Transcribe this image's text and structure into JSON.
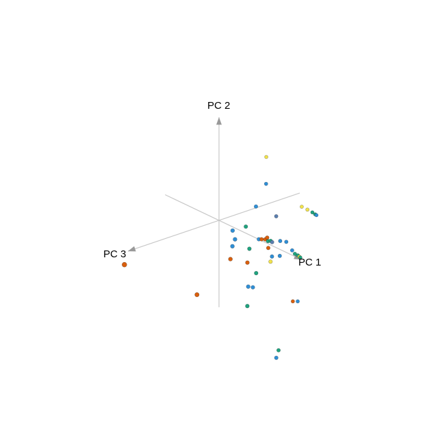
{
  "chart_data": {
    "type": "scatter",
    "title": "",
    "axes": [
      {
        "name": "PC 1"
      },
      {
        "name": "PC 2"
      },
      {
        "name": "PC 3"
      }
    ],
    "grid": false,
    "legend": "none",
    "colors": {
      "blue": "#2f8fd6",
      "teal": "#1fa37f",
      "orange": "#d95f0e",
      "yellow": "#f2e34c",
      "slate": "#5b7fb0",
      "axis": "#c8c8c8",
      "arrow": "#999999"
    },
    "points": [
      {
        "x": 0.55,
        "y": 0.74,
        "z": -0.66,
        "c": "blue"
      },
      {
        "x": 0.06,
        "y": 0.99,
        "z": -1.09,
        "c": "yellow"
      },
      {
        "x": 0.58,
        "y": 0.37,
        "z": -0.39,
        "c": "blue"
      },
      {
        "x": 0.54,
        "y": 0.01,
        "z": -0.18,
        "c": "teal"
      },
      {
        "x": 0.54,
        "y": 0.02,
        "z": 0.14,
        "c": "blue"
      },
      {
        "x": 0.63,
        "y": -0.12,
        "z": 0.16,
        "c": "blue"
      },
      {
        "x": 0.65,
        "y": -0.23,
        "z": 0.24,
        "c": "blue"
      },
      {
        "x": 0.95,
        "y": -0.22,
        "z": 0.09,
        "c": "teal"
      },
      {
        "x": 0.71,
        "y": -0.44,
        "z": 0.34,
        "c": "orange"
      },
      {
        "x": 0.94,
        "y": -0.49,
        "z": 0.13,
        "c": "orange"
      },
      {
        "x": 1.08,
        "y": -0.68,
        "z": 0.04,
        "c": "teal"
      },
      {
        "x": 0.94,
        "y": -0.98,
        "z": 0.11,
        "c": "blue"
      },
      {
        "x": 1.0,
        "y": -0.99,
        "z": 0.05,
        "c": "blue"
      },
      {
        "x": 0.97,
        "y": -0.08,
        "z": -0.12,
        "c": "blue"
      },
      {
        "x": 1.19,
        "y": -0.05,
        "z": -0.15,
        "c": "teal"
      },
      {
        "x": 1.07,
        "y": -0.04,
        "z": -0.1,
        "c": "orange"
      },
      {
        "x": 1.15,
        "y": -0.02,
        "z": -0.12,
        "c": "orange"
      },
      {
        "x": 1.18,
        "y": 0.02,
        "z": -0.14,
        "c": "orange"
      },
      {
        "x": 1.3,
        "y": 0.0,
        "z": -0.12,
        "c": "teal"
      },
      {
        "x": 1.34,
        "y": -0.01,
        "z": -0.12,
        "c": "slate"
      },
      {
        "x": 1.53,
        "y": 0.07,
        "z": -0.15,
        "c": "blue"
      },
      {
        "x": 1.7,
        "y": 0.11,
        "z": -0.15,
        "c": "blue"
      },
      {
        "x": 1.44,
        "y": -0.24,
        "z": -0.03,
        "c": "blue"
      },
      {
        "x": 1.92,
        "y": 0.03,
        "z": -0.1,
        "c": "blue"
      },
      {
        "x": 2.02,
        "y": 0.0,
        "z": -0.08,
        "c": "teal"
      },
      {
        "x": 2.09,
        "y": -0.01,
        "z": -0.09,
        "c": "teal"
      },
      {
        "x": 2.12,
        "y": -0.03,
        "z": -0.1,
        "c": "yellow"
      },
      {
        "x": 2.16,
        "y": -0.03,
        "z": -0.09,
        "c": "teal"
      },
      {
        "x": 1.68,
        "y": -0.14,
        "z": -0.01,
        "c": "blue"
      },
      {
        "x": 1.48,
        "y": -0.31,
        "z": 0.04,
        "c": "yellow"
      },
      {
        "x": 1.36,
        "y": -0.09,
        "z": -0.01,
        "c": "orange"
      },
      {
        "x": 1.2,
        "y": 0.4,
        "z": -0.34,
        "c": "slate"
      },
      {
        "x": 1.9,
        "y": 0.83,
        "z": -0.35,
        "c": "yellow"
      },
      {
        "x": 2.08,
        "y": 0.84,
        "z": -0.33,
        "c": "yellow"
      },
      {
        "x": 2.23,
        "y": 0.84,
        "z": -0.32,
        "c": "teal"
      },
      {
        "x": 2.33,
        "y": 0.84,
        "z": -0.3,
        "c": "teal"
      },
      {
        "x": 2.39,
        "y": 0.85,
        "z": -0.28,
        "c": "blue"
      },
      {
        "x": -0.87,
        "y": -0.76,
        "z": 1.53,
        "c": "orange"
      },
      {
        "x": 0.47,
        "y": -1.07,
        "z": 0.94,
        "c": "orange"
      },
      {
        "x": 0.95,
        "y": -1.36,
        "z": 0.14,
        "c": "teal"
      },
      {
        "x": 1.6,
        "y": -2.08,
        "z": -0.05,
        "c": "teal"
      },
      {
        "x": 1.56,
        "y": -2.24,
        "z": -0.03,
        "c": "blue"
      },
      {
        "x": 1.79,
        "y": -1.08,
        "z": -0.23,
        "c": "orange"
      },
      {
        "x": 1.88,
        "y": -1.06,
        "z": -0.27,
        "c": "blue"
      }
    ]
  }
}
